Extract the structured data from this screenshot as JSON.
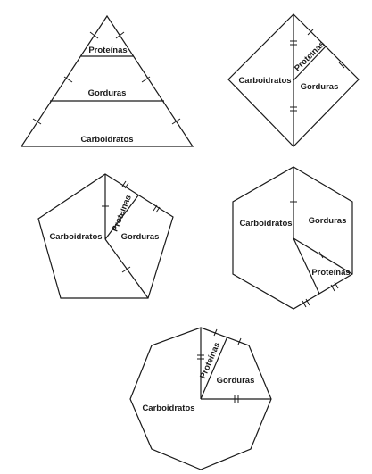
{
  "figures": {
    "triangle": {
      "top_label": "Proteínas",
      "middle_label": "Gorduras",
      "bottom_label": "Carboidratos"
    },
    "square": {
      "left_label": "Carboidratos",
      "strip_label": "Proteínas",
      "right_label": "Gorduras"
    },
    "pentagon": {
      "left_label": "Carboidratos",
      "strip_label": "Proteínas",
      "right_label": "Gorduras"
    },
    "hexagon": {
      "left_label": "Carboidratos",
      "right_label": "Gorduras",
      "lower_label": "Proteínas"
    },
    "octagon": {
      "main_label": "Carboidratos",
      "strip_label": "Proteínas",
      "wedge_label": "Gorduras"
    }
  }
}
